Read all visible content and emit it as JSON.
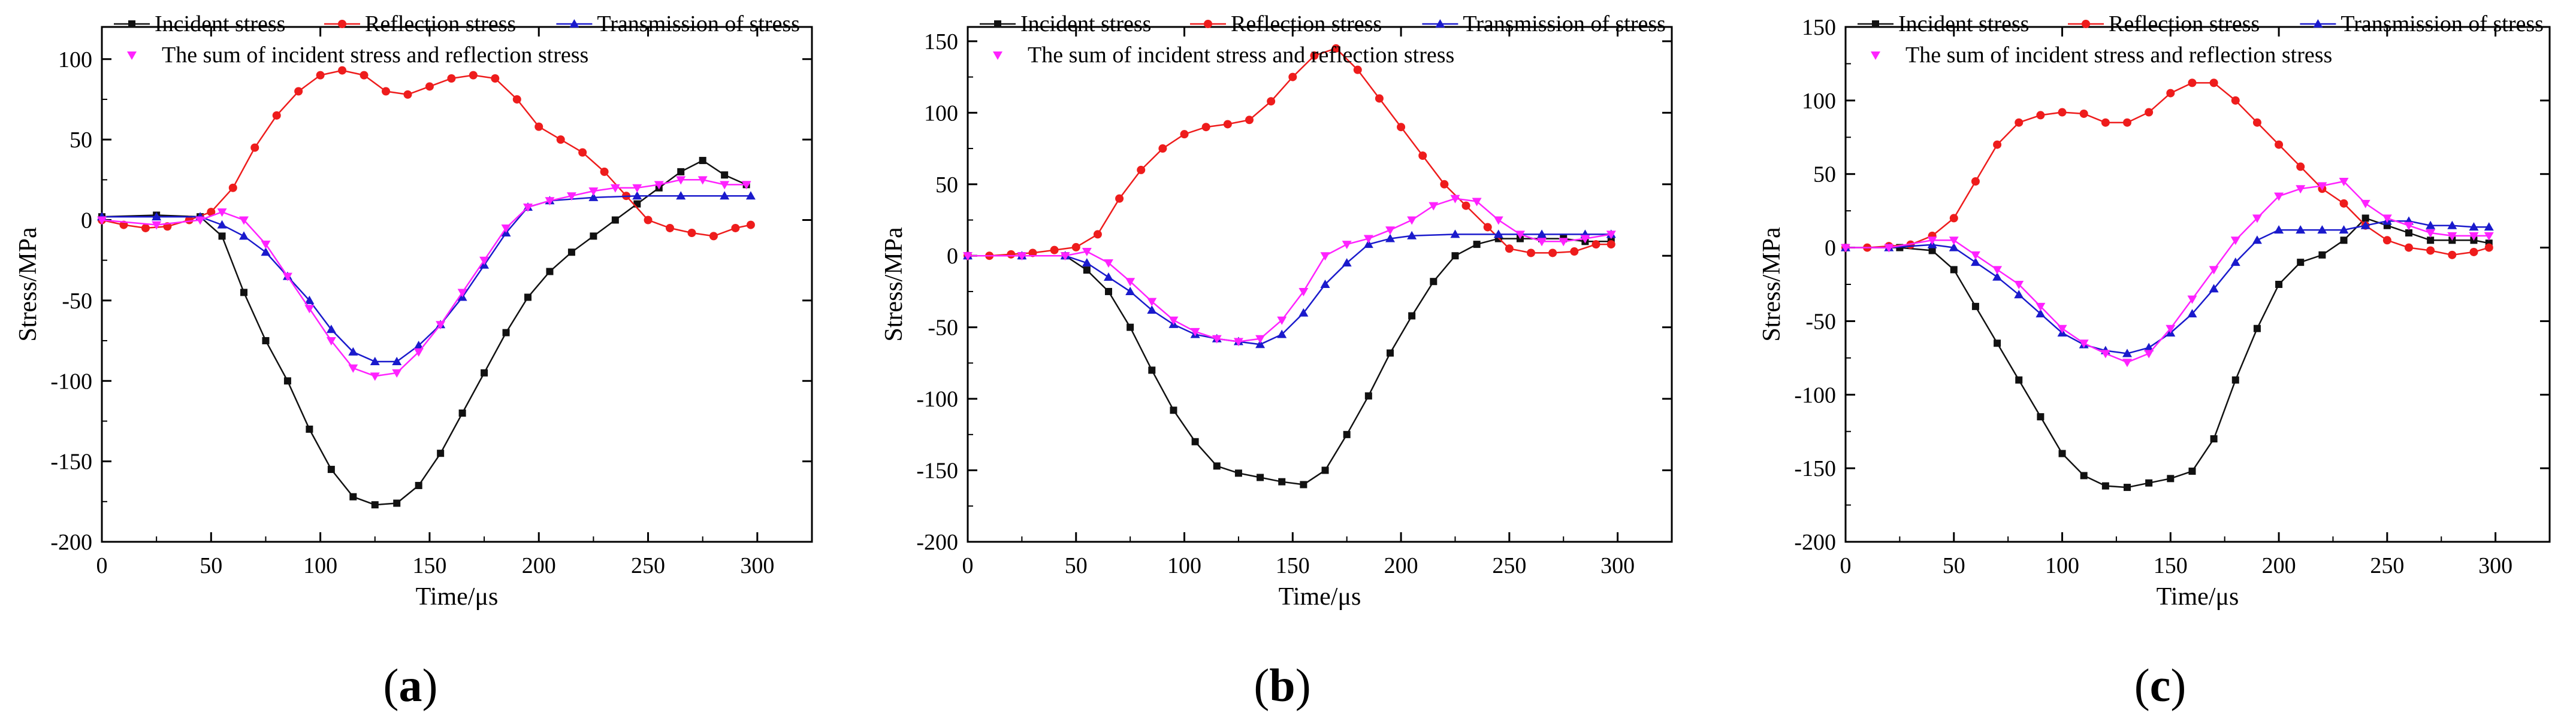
{
  "caption_labels": [
    "a",
    "b",
    "c"
  ],
  "colors": {
    "incident": "#111111",
    "reflection": "#ee1c1c",
    "transmission": "#1a1acc",
    "sum": "#ff22ff",
    "axis": "#000000"
  },
  "chart_data": [
    {
      "type": "line",
      "title": "",
      "xlabel": "Time/μs",
      "ylabel": "Stress/MPa",
      "xlim": [
        0,
        325
      ],
      "ylim": [
        -200,
        120
      ],
      "xticks": [
        0,
        50,
        100,
        150,
        200,
        250,
        300
      ],
      "yticks": [
        -200,
        -150,
        -100,
        -50,
        0,
        50,
        100
      ],
      "legend_rows": [
        [
          "Incident stress",
          "Reflection stress",
          "Transmission of stress"
        ],
        [
          "The sum of incident stress and reflection stress"
        ]
      ],
      "series": [
        {
          "name": "Incident stress",
          "marker": "square",
          "color": "#111111",
          "x": [
            0,
            25,
            45,
            55,
            65,
            75,
            85,
            95,
            105,
            115,
            125,
            135,
            145,
            155,
            165,
            175,
            185,
            195,
            205,
            215,
            225,
            235,
            245,
            255,
            265,
            275,
            285,
            295
          ],
          "y": [
            2,
            3,
            2,
            -10,
            -45,
            -75,
            -100,
            -130,
            -155,
            -172,
            -177,
            -176,
            -165,
            -145,
            -120,
            -95,
            -70,
            -48,
            -32,
            -20,
            -10,
            0,
            10,
            20,
            30,
            37,
            28,
            22
          ]
        },
        {
          "name": "Reflection stress",
          "marker": "circle",
          "color": "#ee1c1c",
          "x": [
            0,
            10,
            20,
            30,
            40,
            50,
            60,
            70,
            80,
            90,
            100,
            110,
            120,
            130,
            140,
            150,
            160,
            170,
            180,
            190,
            200,
            210,
            220,
            230,
            240,
            250,
            260,
            270,
            280,
            290,
            297
          ],
          "y": [
            0,
            -3,
            -5,
            -4,
            0,
            5,
            20,
            45,
            65,
            80,
            90,
            93,
            90,
            80,
            78,
            83,
            88,
            90,
            88,
            75,
            58,
            50,
            42,
            30,
            15,
            0,
            -5,
            -8,
            -10,
            -5,
            -3
          ]
        },
        {
          "name": "Transmission of stress",
          "marker": "triangle",
          "color": "#1a1acc",
          "x": [
            0,
            25,
            45,
            55,
            65,
            75,
            85,
            95,
            105,
            115,
            125,
            135,
            145,
            155,
            165,
            175,
            185,
            195,
            205,
            225,
            245,
            265,
            285,
            297
          ],
          "y": [
            2,
            2,
            2,
            -3,
            -10,
            -20,
            -35,
            -50,
            -68,
            -82,
            -88,
            -88,
            -78,
            -65,
            -48,
            -28,
            -8,
            8,
            12,
            14,
            15,
            15,
            15,
            15
          ]
        },
        {
          "name": "The sum of incident stress and reflection stress",
          "marker": "triangle-down",
          "color": "#ff22ff",
          "x": [
            0,
            25,
            45,
            55,
            65,
            75,
            85,
            95,
            105,
            115,
            125,
            135,
            145,
            155,
            165,
            175,
            185,
            195,
            205,
            215,
            225,
            235,
            245,
            255,
            265,
            275,
            285,
            295
          ],
          "y": [
            0,
            -3,
            0,
            5,
            0,
            -15,
            -35,
            -55,
            -75,
            -92,
            -97,
            -95,
            -82,
            -65,
            -45,
            -25,
            -5,
            8,
            12,
            15,
            18,
            20,
            20,
            22,
            25,
            25,
            22,
            22
          ]
        }
      ]
    },
    {
      "type": "line",
      "title": "",
      "xlabel": "Time/μs",
      "ylabel": "Stress/MPa",
      "xlim": [
        0,
        325
      ],
      "ylim": [
        -200,
        160
      ],
      "xticks": [
        0,
        50,
        100,
        150,
        200,
        250,
        300
      ],
      "yticks": [
        -200,
        -150,
        -100,
        -50,
        0,
        50,
        100,
        150
      ],
      "legend_rows": [
        [
          "Incident stress",
          "Reflection stress",
          "Transmission of stress"
        ],
        [
          "The sum of incident stress and reflection stress"
        ]
      ],
      "series": [
        {
          "name": "Incident stress",
          "marker": "square",
          "color": "#111111",
          "x": [
            0,
            25,
            45,
            55,
            65,
            75,
            85,
            95,
            105,
            115,
            125,
            135,
            145,
            155,
            165,
            175,
            185,
            195,
            205,
            215,
            225,
            235,
            245,
            255,
            265,
            275,
            285,
            297
          ],
          "y": [
            0,
            0,
            0,
            -10,
            -25,
            -50,
            -80,
            -108,
            -130,
            -147,
            -152,
            -155,
            -158,
            -160,
            -150,
            -125,
            -98,
            -68,
            -42,
            -18,
            0,
            8,
            12,
            12,
            12,
            12,
            10,
            10
          ]
        },
        {
          "name": "Reflection stress",
          "marker": "circle",
          "color": "#ee1c1c",
          "x": [
            0,
            10,
            20,
            30,
            40,
            50,
            60,
            70,
            80,
            90,
            100,
            110,
            120,
            130,
            140,
            150,
            160,
            170,
            180,
            190,
            200,
            210,
            220,
            230,
            240,
            250,
            260,
            270,
            280,
            290,
            297
          ],
          "y": [
            0,
            0,
            1,
            2,
            4,
            6,
            15,
            40,
            60,
            75,
            85,
            90,
            92,
            95,
            108,
            125,
            140,
            145,
            130,
            110,
            90,
            70,
            50,
            35,
            20,
            5,
            2,
            2,
            3,
            8,
            8
          ]
        },
        {
          "name": "Transmission of stress",
          "marker": "triangle",
          "color": "#1a1acc",
          "x": [
            0,
            25,
            45,
            55,
            65,
            75,
            85,
            95,
            105,
            115,
            125,
            135,
            145,
            155,
            165,
            175,
            185,
            195,
            205,
            225,
            245,
            265,
            285,
            297
          ],
          "y": [
            0,
            0,
            0,
            -5,
            -15,
            -25,
            -38,
            -48,
            -55,
            -58,
            -60,
            -62,
            -55,
            -40,
            -20,
            -5,
            8,
            12,
            14,
            15,
            15,
            15,
            15,
            15
          ]
        },
        {
          "name": "The sum of incident stress and reflection stress",
          "marker": "triangle-down",
          "color": "#ff22ff",
          "x": [
            0,
            25,
            45,
            55,
            65,
            75,
            85,
            95,
            105,
            115,
            125,
            135,
            145,
            155,
            165,
            175,
            185,
            195,
            205,
            215,
            225,
            235,
            245,
            255,
            265,
            275,
            285,
            297
          ],
          "y": [
            0,
            0,
            0,
            3,
            -5,
            -18,
            -32,
            -45,
            -53,
            -58,
            -60,
            -58,
            -45,
            -25,
            0,
            8,
            12,
            18,
            25,
            35,
            40,
            38,
            25,
            15,
            10,
            10,
            12,
            15
          ]
        }
      ]
    },
    {
      "type": "line",
      "title": "",
      "xlabel": "Time/μs",
      "ylabel": "Stress/MPa",
      "xlim": [
        0,
        325
      ],
      "ylim": [
        -200,
        150
      ],
      "xticks": [
        0,
        50,
        100,
        150,
        200,
        250,
        300
      ],
      "yticks": [
        -200,
        -150,
        -100,
        -50,
        0,
        50,
        100,
        150
      ],
      "legend_rows": [
        [
          "Incident stress",
          "Reflection stress",
          "Transmission of stress"
        ],
        [
          "The sum of incident stress and reflection stress"
        ]
      ],
      "series": [
        {
          "name": "Incident stress",
          "marker": "square",
          "color": "#111111",
          "x": [
            0,
            25,
            40,
            50,
            60,
            70,
            80,
            90,
            100,
            110,
            120,
            130,
            140,
            150,
            160,
            170,
            180,
            190,
            200,
            210,
            220,
            230,
            240,
            250,
            260,
            270,
            280,
            290,
            297
          ],
          "y": [
            0,
            0,
            -2,
            -15,
            -40,
            -65,
            -90,
            -115,
            -140,
            -155,
            -162,
            -163,
            -160,
            -157,
            -152,
            -130,
            -90,
            -55,
            -25,
            -10,
            -5,
            5,
            20,
            15,
            10,
            5,
            5,
            5,
            3
          ]
        },
        {
          "name": "Reflection stress",
          "marker": "circle",
          "color": "#ee1c1c",
          "x": [
            0,
            10,
            20,
            30,
            40,
            50,
            60,
            70,
            80,
            90,
            100,
            110,
            120,
            130,
            140,
            150,
            160,
            170,
            180,
            190,
            200,
            210,
            220,
            230,
            240,
            250,
            260,
            270,
            280,
            290,
            297
          ],
          "y": [
            0,
            0,
            1,
            2,
            8,
            20,
            45,
            70,
            85,
            90,
            92,
            91,
            85,
            85,
            92,
            105,
            112,
            112,
            100,
            85,
            70,
            55,
            40,
            30,
            15,
            5,
            0,
            -2,
            -5,
            -3,
            0
          ]
        },
        {
          "name": "Transmission of stress",
          "marker": "triangle",
          "color": "#1a1acc",
          "x": [
            0,
            20,
            40,
            50,
            60,
            70,
            80,
            90,
            100,
            110,
            120,
            130,
            140,
            150,
            160,
            170,
            180,
            190,
            200,
            210,
            220,
            230,
            240,
            250,
            260,
            270,
            280,
            290,
            297
          ],
          "y": [
            0,
            0,
            2,
            0,
            -10,
            -20,
            -32,
            -45,
            -58,
            -66,
            -70,
            -72,
            -68,
            -58,
            -45,
            -28,
            -10,
            5,
            12,
            12,
            12,
            12,
            15,
            18,
            18,
            15,
            15,
            14,
            14
          ]
        },
        {
          "name": "The sum of incident stress and reflection stress",
          "marker": "triangle-down",
          "color": "#ff22ff",
          "x": [
            0,
            20,
            40,
            50,
            60,
            70,
            80,
            90,
            100,
            110,
            120,
            130,
            140,
            150,
            160,
            170,
            180,
            190,
            200,
            210,
            220,
            230,
            240,
            250,
            260,
            270,
            280,
            290,
            297
          ],
          "y": [
            0,
            0,
            5,
            5,
            -5,
            -15,
            -25,
            -40,
            -55,
            -65,
            -72,
            -78,
            -72,
            -55,
            -35,
            -15,
            5,
            20,
            35,
            40,
            42,
            45,
            30,
            20,
            15,
            10,
            8,
            8,
            8
          ]
        }
      ]
    }
  ]
}
